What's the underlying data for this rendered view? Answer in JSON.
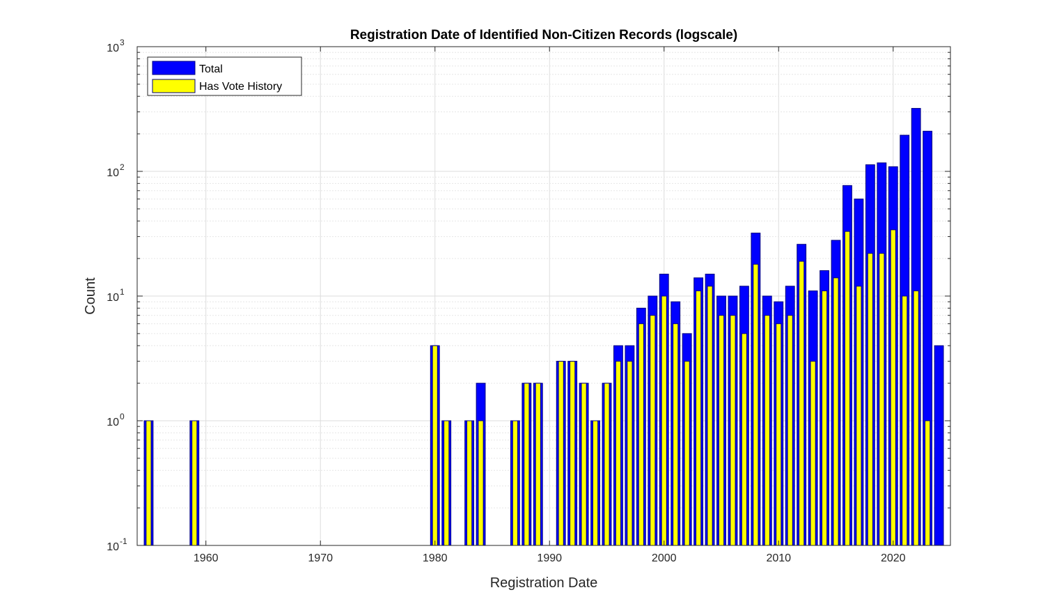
{
  "chart_data": {
    "type": "bar",
    "title": "Registration Date of Identified Non-Citizen Records (logscale)",
    "xlabel": "Registration Date",
    "ylabel": "Count",
    "yscale": "log",
    "ylim": [
      0.1,
      1000
    ],
    "xlim": [
      1954,
      2025
    ],
    "xticks": [
      "1960",
      "1970",
      "1980",
      "1990",
      "2000",
      "2010",
      "2020"
    ],
    "yticks": [
      {
        "value": 0.1,
        "base": "10",
        "exp": "-1"
      },
      {
        "value": 1,
        "base": "10",
        "exp": "0"
      },
      {
        "value": 10,
        "base": "10",
        "exp": "1"
      },
      {
        "value": 100,
        "base": "10",
        "exp": "2"
      },
      {
        "value": 1000,
        "base": "10",
        "exp": "3"
      }
    ],
    "grid": true,
    "legend_position": "top-left",
    "colors": {
      "total": "#0000ff",
      "has_vote_history": "#ffff00",
      "edge": "#00007f"
    },
    "series": [
      {
        "name": "Total",
        "x": [
          1955,
          1959,
          1980,
          1981,
          1983,
          1984,
          1987,
          1988,
          1989,
          1991,
          1992,
          1993,
          1994,
          1995,
          1996,
          1997,
          1998,
          1999,
          2000,
          2001,
          2002,
          2003,
          2004,
          2005,
          2006,
          2007,
          2008,
          2009,
          2010,
          2011,
          2012,
          2013,
          2014,
          2015,
          2016,
          2017,
          2018,
          2019,
          2020,
          2021,
          2022,
          2023,
          2024
        ],
        "values": [
          1,
          1,
          4,
          1,
          1,
          2,
          1,
          2,
          2,
          3,
          3,
          2,
          1,
          2,
          4,
          4,
          8,
          10,
          15,
          9,
          5,
          14,
          15,
          10,
          10,
          12,
          32,
          10,
          9,
          12,
          26,
          11,
          16,
          28,
          77,
          60,
          113,
          117,
          109,
          195,
          320,
          210,
          4
        ]
      },
      {
        "name": "Has Vote History",
        "x": [
          1955,
          1959,
          1980,
          1981,
          1983,
          1984,
          1987,
          1988,
          1989,
          1991,
          1992,
          1993,
          1994,
          1995,
          1996,
          1997,
          1998,
          1999,
          2000,
          2001,
          2002,
          2003,
          2004,
          2005,
          2006,
          2007,
          2008,
          2009,
          2010,
          2011,
          2012,
          2013,
          2014,
          2015,
          2016,
          2017,
          2018,
          2019,
          2020,
          2021,
          2022,
          2023
        ],
        "values": [
          1,
          1,
          4,
          1,
          1,
          1,
          1,
          2,
          2,
          3,
          3,
          2,
          1,
          2,
          3,
          3,
          6,
          7,
          10,
          6,
          3,
          11,
          12,
          7,
          7,
          5,
          18,
          7,
          6,
          7,
          19,
          3,
          11,
          14,
          33,
          12,
          22,
          22,
          34,
          10,
          11,
          1
        ]
      }
    ]
  }
}
